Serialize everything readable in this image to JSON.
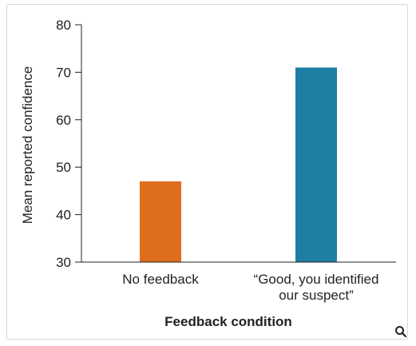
{
  "chart_data": {
    "type": "bar",
    "title": "",
    "categories": [
      [
        "No feedback"
      ],
      [
        "“Good, you identified",
        "our suspect”"
      ]
    ],
    "values": [
      47,
      71
    ],
    "colors": [
      "#dd6e1b",
      "#1f7ea3"
    ],
    "xlabel": "Feedback condition",
    "ylabel": "Mean reported confidence",
    "ylim": [
      30,
      80
    ],
    "yticks": [
      30,
      40,
      50,
      60,
      70,
      80
    ],
    "grid": false
  },
  "icons": {
    "zoom": "magnifier-icon"
  }
}
